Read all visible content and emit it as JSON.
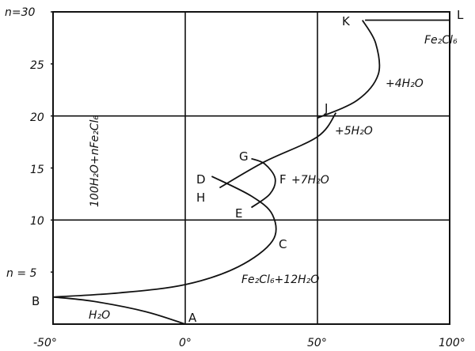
{
  "chart_data": {
    "type": "line",
    "xlim": [
      -50,
      100
    ],
    "ylim": [
      0,
      30
    ],
    "x_ticks": [
      "-50°",
      "0°",
      "50°",
      "100°"
    ],
    "y_ticks": [
      "n=30",
      "25",
      "20",
      "15",
      "10",
      "n = 5"
    ],
    "y_tick_values": [
      30,
      25,
      20,
      15,
      10,
      5
    ],
    "x_tick_values": [
      -50,
      0,
      50,
      100
    ],
    "grid": {
      "x": [
        0,
        50
      ],
      "y": [
        10,
        20
      ]
    },
    "ylabel": "100H₂O+nFe₂Cl₆",
    "curves": [
      {
        "name": "H₂O",
        "points": [
          [
            0,
            0
          ],
          [
            -15,
            1.2
          ],
          [
            -35,
            2.2
          ],
          [
            -50,
            2.6
          ]
        ]
      },
      {
        "name": "Fe₂Cl₆+12H₂O",
        "points": [
          [
            -50,
            2.6
          ],
          [
            -25,
            3.0
          ],
          [
            0,
            3.8
          ],
          [
            20,
            5.5
          ],
          [
            33,
            8
          ],
          [
            33,
            10.5
          ],
          [
            25,
            12.3
          ],
          [
            10,
            14.2
          ]
        ]
      },
      {
        "name": "+7H₂O",
        "points": [
          [
            25,
            11.2
          ],
          [
            32,
            12.5
          ],
          [
            34,
            14
          ],
          [
            30,
            15.4
          ],
          [
            25,
            15.9
          ]
        ]
      },
      {
        "name": "+5H₂O",
        "points": [
          [
            13,
            13.1
          ],
          [
            30,
            15.6
          ],
          [
            50,
            18
          ],
          [
            57,
            20.3
          ]
        ]
      },
      {
        "name": "+4H₂O",
        "points": [
          [
            50,
            19.8
          ],
          [
            65,
            21.5
          ],
          [
            73,
            24
          ],
          [
            72,
            27
          ],
          [
            67,
            29.2
          ]
        ]
      },
      {
        "name": "Fe₂Cl₆",
        "points": [
          [
            68,
            29.2
          ],
          [
            100,
            29.2
          ]
        ]
      }
    ],
    "points": [
      {
        "label": "A",
        "x": 0,
        "y": 0
      },
      {
        "label": "B",
        "x": -50,
        "y": 2.6
      },
      {
        "label": "C",
        "x": 33,
        "y": 8.5
      },
      {
        "label": "D",
        "x": 10,
        "y": 14.2
      },
      {
        "label": "E",
        "x": 25,
        "y": 11.2
      },
      {
        "label": "F",
        "x": 34,
        "y": 14
      },
      {
        "label": "G",
        "x": 25,
        "y": 15.9
      },
      {
        "label": "H",
        "x": 13,
        "y": 13.1
      },
      {
        "label": "J",
        "x": 56,
        "y": 20.3
      },
      {
        "label": "K",
        "x": 67,
        "y": 29.2
      },
      {
        "label": "L",
        "x": 100,
        "y": 30
      }
    ],
    "annotations": [
      "H₂O",
      "Fe₂Cl₆+12H₂O",
      "+7H₂O",
      "+5H₂O",
      "+4H₂O",
      "Fe₂Cl₆"
    ]
  }
}
